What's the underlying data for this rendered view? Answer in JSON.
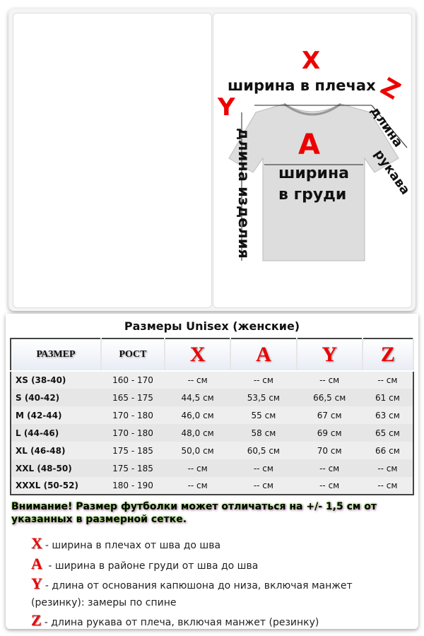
{
  "diagram": {
    "x": "X",
    "x_label": "ширина в плечах",
    "y": "Y",
    "y_label": "длина изделия",
    "a": "A",
    "a_label_1": "ширина",
    "a_label_2": "в груди",
    "z": "Z",
    "z_label_1": "длина",
    "z_label_2": "рукава"
  },
  "table": {
    "title": "Размеры Unisex (женские)",
    "headers": [
      "РАЗМЕР",
      "РОСТ",
      "X",
      "A",
      "Y",
      "Z"
    ],
    "rows": [
      [
        "XS (38-40)",
        "160 - 170",
        "--  см",
        "-- см",
        "-- см",
        "-- см"
      ],
      [
        "S (40-42)",
        "165 - 175",
        "44,5 см",
        "53,5 см",
        "66,5 см",
        "61 см"
      ],
      [
        "M (42-44)",
        "170 - 180",
        "46,0 см",
        "55 см",
        "67 см",
        "63 см"
      ],
      [
        "L (44-46)",
        "170 - 180",
        "48,0 см",
        "58 см",
        "69 см",
        "65 см"
      ],
      [
        "XL (46-48)",
        "175 - 185",
        "50,0 см",
        "60,5 см",
        "70 см",
        "66 см"
      ],
      [
        "XXL (48-50)",
        "175 - 185",
        "-- см",
        "-- см",
        "-- см",
        "-- см"
      ],
      [
        "XXXL (50-52)",
        "180 - 190",
        "-- см",
        "-- см",
        "-- см",
        "-- см"
      ]
    ]
  },
  "warning": "Внимание! Размер футболки может отличаться на +/- 1,5 см от указанных в размерной сетке.",
  "legend": [
    {
      "key": "X",
      "text": "- ширина в плечах от шва до шва"
    },
    {
      "key": "A",
      "text": " - ширина в районе груди от шва до шва"
    },
    {
      "key": "Y",
      "text": "- длина от основания капюшона до низа, включая манжет (резинку): замеры по спине"
    },
    {
      "key": "Z",
      "text": "- длина рукава от плеча, включая манжет (резинку)"
    }
  ]
}
